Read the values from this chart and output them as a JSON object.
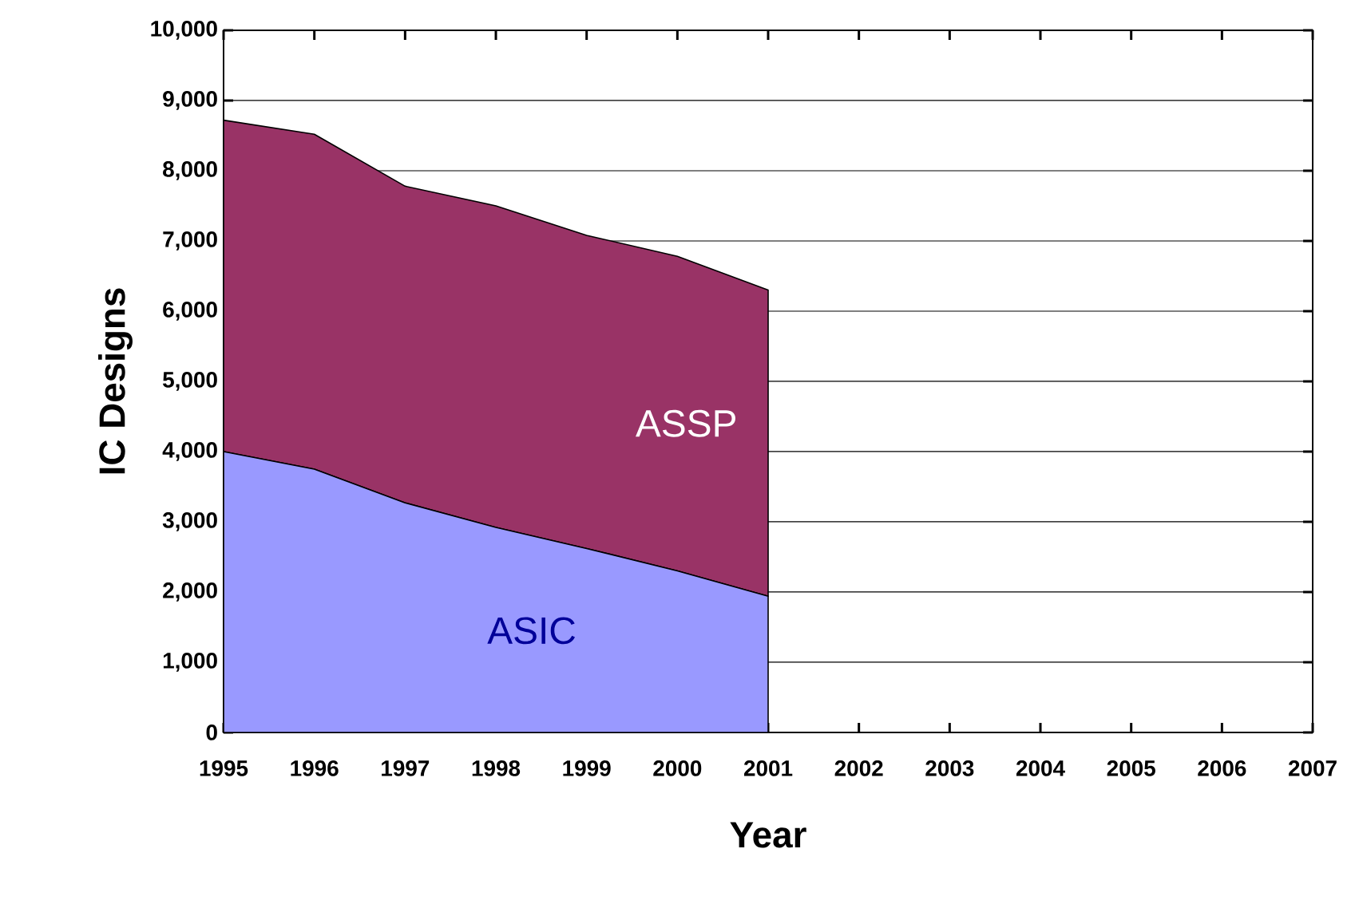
{
  "chart_data": {
    "type": "area",
    "stacked": true,
    "xlabel": "Year",
    "ylabel": "IC Designs",
    "x": [
      1995,
      1996,
      1997,
      1998,
      1999,
      2000,
      2001
    ],
    "series": [
      {
        "name": "ASIC",
        "color": "#9999ff",
        "values": [
          4000,
          3750,
          3270,
          2920,
          2620,
          2300,
          1940
        ]
      },
      {
        "name": "ASSP",
        "color": "#993366",
        "values": [
          4720,
          4770,
          4510,
          4580,
          4460,
          4480,
          4360
        ]
      }
    ],
    "xlim": [
      1995,
      2007
    ],
    "xticks": [
      1995,
      1996,
      1997,
      1998,
      1999,
      2000,
      2001,
      2002,
      2003,
      2004,
      2005,
      2006,
      2007
    ],
    "ylim": [
      0,
      10000
    ],
    "yticks": [
      {
        "value": 0,
        "label": "0"
      },
      {
        "value": 1000,
        "label": "1,000"
      },
      {
        "value": 2000,
        "label": "2,000"
      },
      {
        "value": 3000,
        "label": "3,000"
      },
      {
        "value": 4000,
        "label": "4,000"
      },
      {
        "value": 5000,
        "label": "5,000"
      },
      {
        "value": 6000,
        "label": "6,000"
      },
      {
        "value": 7000,
        "label": "7,000"
      },
      {
        "value": 8000,
        "label": "8,000"
      },
      {
        "value": 9000,
        "label": "9,000"
      },
      {
        "value": 10000,
        "label": "10,000"
      }
    ],
    "grid": "y",
    "legend": false
  }
}
